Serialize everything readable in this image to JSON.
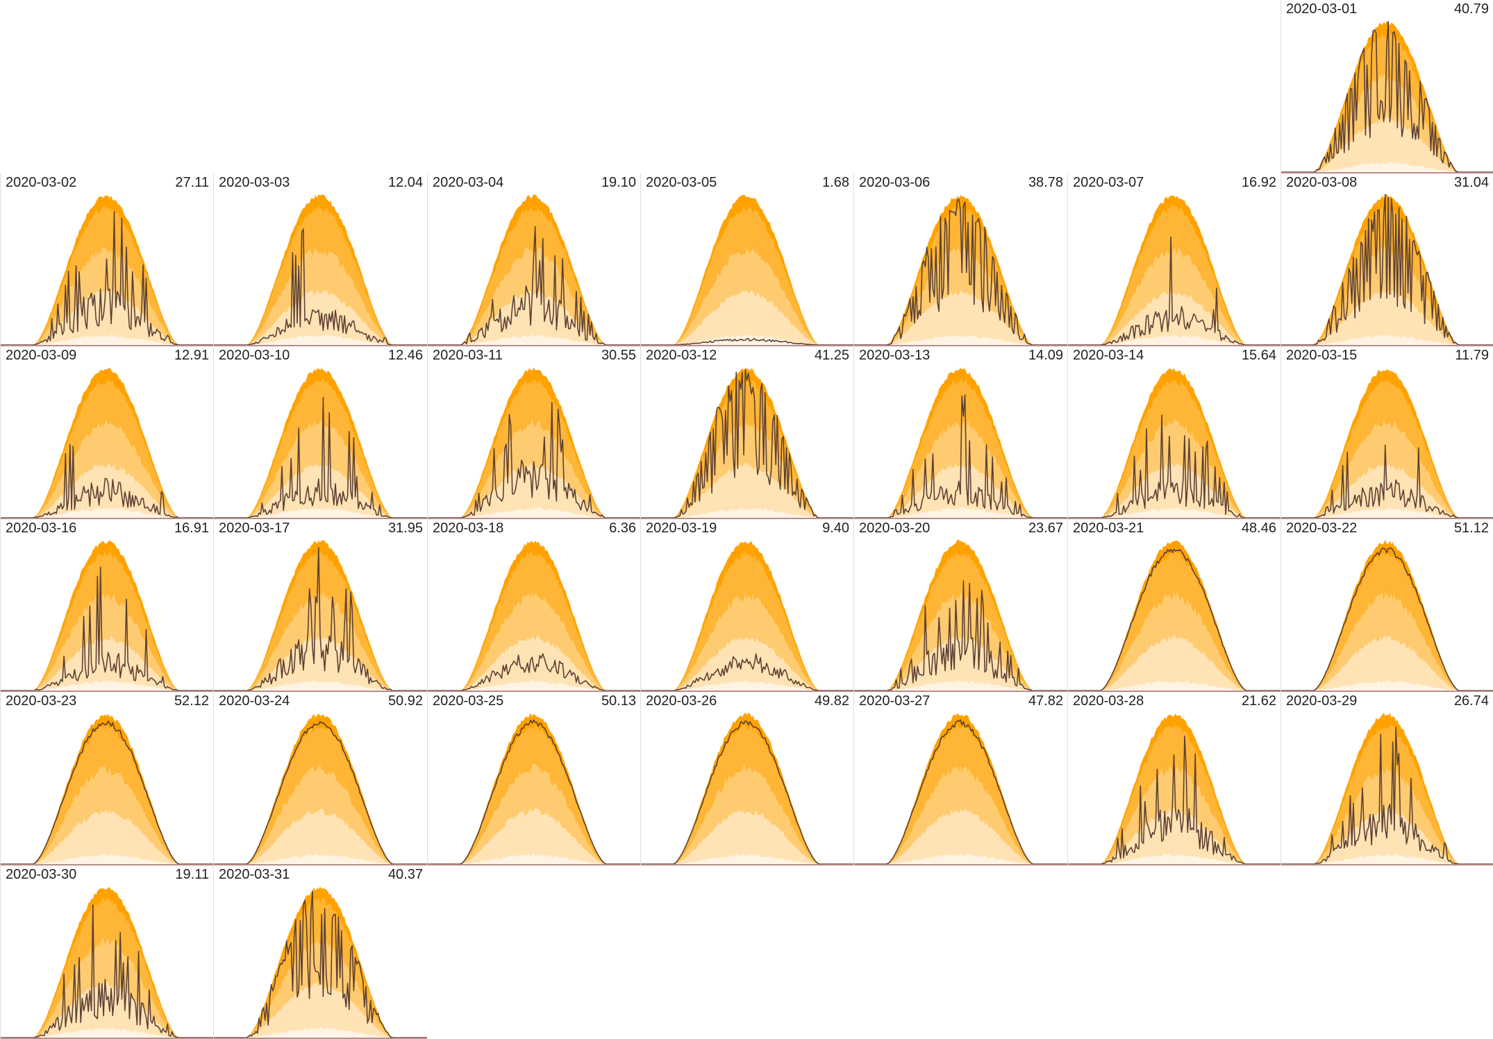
{
  "chart_data": {
    "type": "area",
    "layout": "calendar small multiples (7 columns, weeks as rows, Monday-first)",
    "colors": {
      "band_outer": "#FFA200",
      "band_2": "#FFB535",
      "band_3": "#FFCB70",
      "band_4": "#FFE3B5",
      "band_inner": "#FFF4E3",
      "actual_line": "#5C4033",
      "baseline": "#B88C8C",
      "cell_border": "#DDDDDD"
    },
    "days": [
      {
        "date": "2020-03-01",
        "value": "40.79",
        "pattern": "broken-high"
      },
      {
        "date": "2020-03-02",
        "value": "27.11",
        "pattern": "spiky-mid"
      },
      {
        "date": "2020-03-03",
        "value": "12.04",
        "pattern": "low-spiky"
      },
      {
        "date": "2020-03-04",
        "value": "19.10",
        "pattern": "spiky-mid"
      },
      {
        "date": "2020-03-05",
        "value": "1.68",
        "pattern": "flat"
      },
      {
        "date": "2020-03-06",
        "value": "38.78",
        "pattern": "broken-high"
      },
      {
        "date": "2020-03-07",
        "value": "16.92",
        "pattern": "low-spiky"
      },
      {
        "date": "2020-03-08",
        "value": "31.04",
        "pattern": "broken-high"
      },
      {
        "date": "2020-03-09",
        "value": "12.91",
        "pattern": "low-spiky"
      },
      {
        "date": "2020-03-10",
        "value": "12.46",
        "pattern": "low-spiky"
      },
      {
        "date": "2020-03-11",
        "value": "30.55",
        "pattern": "spiky-mid"
      },
      {
        "date": "2020-03-12",
        "value": "41.25",
        "pattern": "broken-high"
      },
      {
        "date": "2020-03-13",
        "value": "14.09",
        "pattern": "low-spiky"
      },
      {
        "date": "2020-03-14",
        "value": "15.64",
        "pattern": "low-spiky"
      },
      {
        "date": "2020-03-15",
        "value": "11.79",
        "pattern": "low-spiky"
      },
      {
        "date": "2020-03-16",
        "value": "16.91",
        "pattern": "low-spiky"
      },
      {
        "date": "2020-03-17",
        "value": "31.95",
        "pattern": "spiky-mid"
      },
      {
        "date": "2020-03-18",
        "value": "6.36",
        "pattern": "low-smooth"
      },
      {
        "date": "2020-03-19",
        "value": "9.40",
        "pattern": "low-smooth"
      },
      {
        "date": "2020-03-20",
        "value": "23.67",
        "pattern": "spiky-mid"
      },
      {
        "date": "2020-03-21",
        "value": "48.46",
        "pattern": "clear"
      },
      {
        "date": "2020-03-22",
        "value": "51.12",
        "pattern": "clear"
      },
      {
        "date": "2020-03-23",
        "value": "52.12",
        "pattern": "clear"
      },
      {
        "date": "2020-03-24",
        "value": "50.92",
        "pattern": "clear"
      },
      {
        "date": "2020-03-25",
        "value": "50.13",
        "pattern": "clear"
      },
      {
        "date": "2020-03-26",
        "value": "49.82",
        "pattern": "clear"
      },
      {
        "date": "2020-03-27",
        "value": "47.82",
        "pattern": "clear"
      },
      {
        "date": "2020-03-28",
        "value": "21.62",
        "pattern": "spiky-mid"
      },
      {
        "date": "2020-03-29",
        "value": "26.74",
        "pattern": "spiky-mid"
      },
      {
        "date": "2020-03-30",
        "value": "19.11",
        "pattern": "spiky-mid"
      },
      {
        "date": "2020-03-31",
        "value": "40.37",
        "pattern": "broken-high"
      }
    ]
  }
}
